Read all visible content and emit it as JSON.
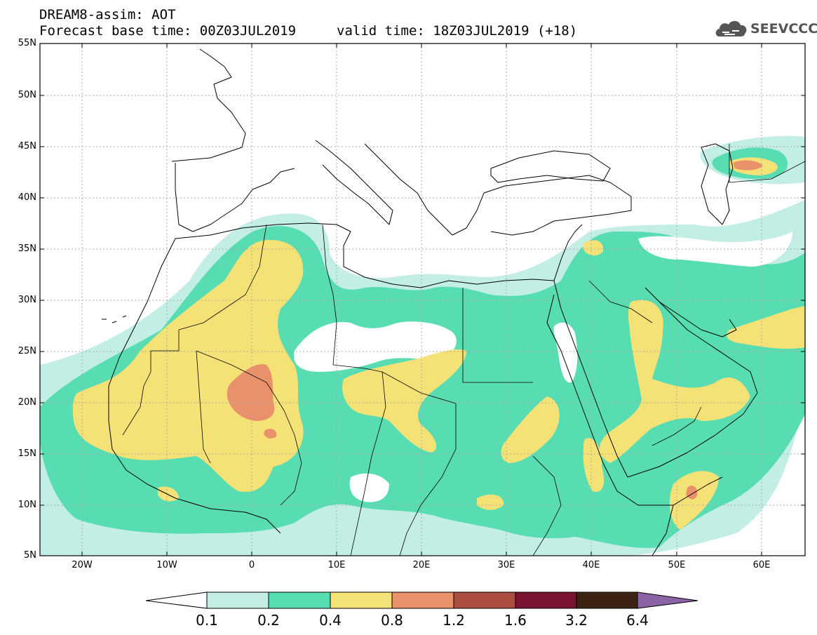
{
  "header": {
    "title": "DREAM8-assim: AOT",
    "base_time": "Forecast base time: 00Z03JUL2019",
    "valid_time": "valid time: 18Z03JUL2019 (+18)"
  },
  "logo": {
    "text": "SEEVCCC",
    "icon": "cloud-icon"
  },
  "map": {
    "lat_labels": [
      "55N",
      "50N",
      "45N",
      "40N",
      "35N",
      "30N",
      "25N",
      "20N",
      "15N",
      "10N",
      "5N"
    ],
    "lon_labels": [
      "20W",
      "10W",
      "0",
      "10E",
      "20E",
      "30E",
      "40E",
      "50E",
      "60E"
    ]
  },
  "colorbar": {
    "labels": [
      "0.1",
      "0.2",
      "0.4",
      "0.8",
      "1.2",
      "1.6",
      "3.2",
      "6.4"
    ],
    "colors": [
      "#ffffff",
      "#c3eee6",
      "#58dcb2",
      "#f5e276",
      "#e8916a",
      "#ab4e3f",
      "#7a1430",
      "#3d2314",
      "#8a64a4"
    ]
  },
  "palette": {
    "light": "#c3eee6",
    "green": "#58dcb2",
    "yellow": "#f5e276",
    "orange": "#e8916a",
    "grid": "#a8a8a8",
    "border": "#000000"
  }
}
